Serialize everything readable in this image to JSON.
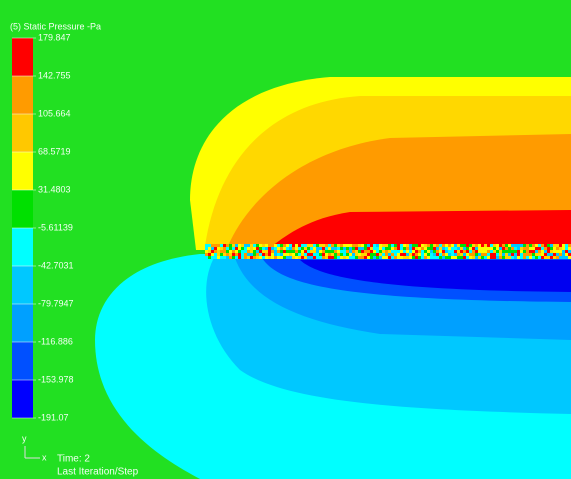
{
  "legend": {
    "title": "(5) Static Pressure -Pa",
    "labels": [
      "179.847",
      "142.755",
      "105.664",
      "68.5719",
      "31.4803",
      "-5.61139",
      "-42.7031",
      "-79.7947",
      "-116.886",
      "-153.978",
      "-191.07"
    ]
  },
  "triad": {
    "y": "y",
    "x": "x"
  },
  "footer": {
    "time": "Time: 2",
    "step": "Last Iteration/Step"
  }
}
